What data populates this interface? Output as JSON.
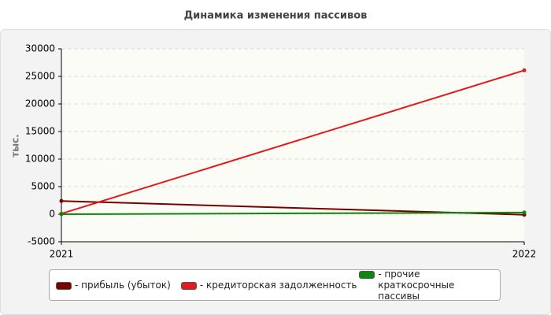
{
  "chart_data": {
    "type": "line",
    "title": "Динамика изменения пассивов",
    "y_label": "тыс.",
    "categories": [
      "2021",
      "2022"
    ],
    "series": [
      {
        "name": "прибыль (убыток)",
        "color": "#7b0000",
        "values": [
          2400,
          -100
        ]
      },
      {
        "name": "кредиторская задолженность",
        "color": "#e31a1c",
        "values": [
          100,
          26100
        ]
      },
      {
        "name": "прочие краткосрочные пассивы",
        "color": "#0a8a0a",
        "values": [
          0,
          300
        ]
      }
    ],
    "ylim": [
      -5000,
      30000
    ],
    "yticks": [
      -5000,
      0,
      5000,
      10000,
      15000,
      20000,
      25000,
      30000
    ],
    "grid": true
  }
}
